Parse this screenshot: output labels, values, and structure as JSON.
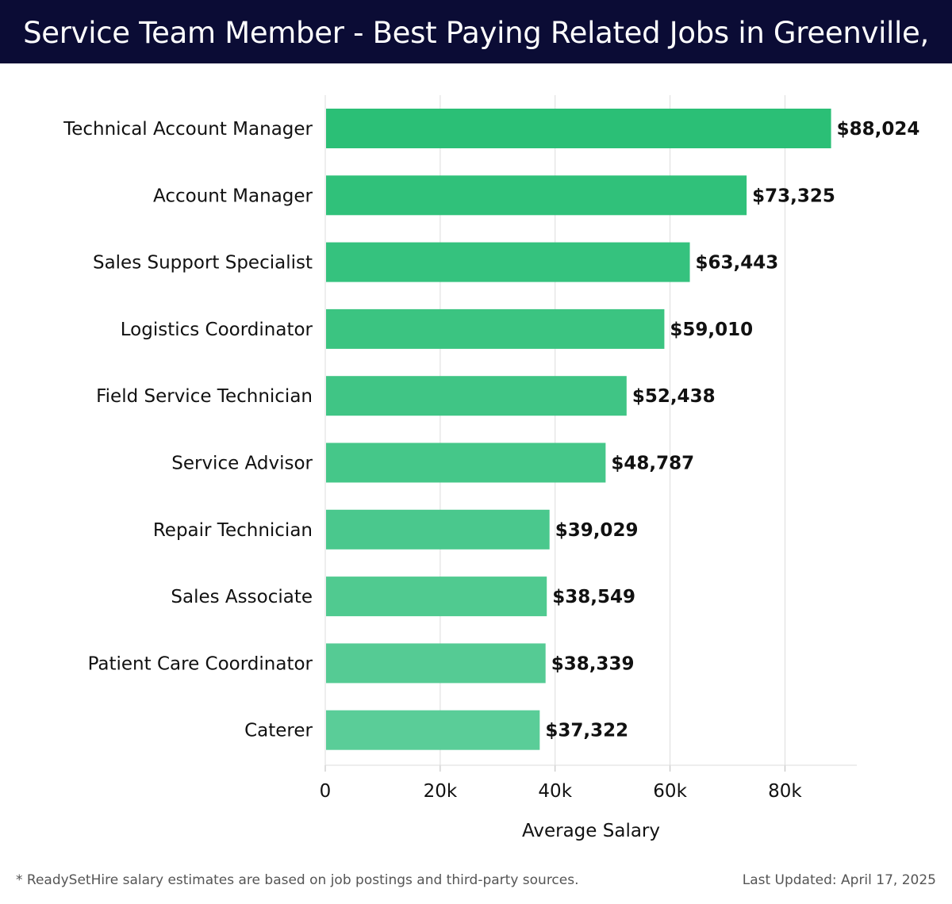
{
  "header": {
    "title": "Service Team Member - Best Paying Related Jobs in Greenville, SC"
  },
  "chart_data": {
    "type": "bar",
    "orientation": "horizontal",
    "title": "Service Team Member - Best Paying Related Jobs in Greenville, SC",
    "xlabel": "Average Salary",
    "ylabel": "",
    "categories": [
      "Technical Account Manager",
      "Account Manager",
      "Sales Support Specialist",
      "Logistics Coordinator",
      "Field Service Technician",
      "Service Advisor",
      "Repair Technician",
      "Sales Associate",
      "Patient Care Coordinator",
      "Caterer"
    ],
    "values": [
      88024,
      73325,
      63443,
      59010,
      52438,
      48787,
      39029,
      38549,
      38339,
      37322
    ],
    "value_labels": [
      "$88,024",
      "$73,325",
      "$63,443",
      "$59,010",
      "$52,438",
      "$48,787",
      "$39,029",
      "$38,549",
      "$38,339",
      "$37,322"
    ],
    "xlim": [
      0,
      92500
    ],
    "xticks": [
      0,
      20000,
      40000,
      60000,
      80000
    ],
    "xtick_labels": [
      "0",
      "20k",
      "40k",
      "60k",
      "80k"
    ],
    "grid": true,
    "colors": {
      "bar_top": "#2bbf76",
      "bar_bottom": "#5acd98",
      "grid": "#dddddd",
      "header_bg": "#0b0c35"
    }
  },
  "footer": {
    "note": "* ReadySetHire salary estimates are based on job postings and third-party sources.",
    "updated": "Last Updated: April 17, 2025"
  }
}
